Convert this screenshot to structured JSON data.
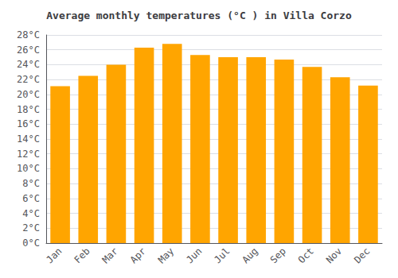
{
  "chart_data": {
    "type": "bar",
    "title": "Average monthly temperatures (°C ) in Villa Corzo",
    "categories": [
      "Jan",
      "Feb",
      "Mar",
      "Apr",
      "May",
      "Jun",
      "Jul",
      "Aug",
      "Sep",
      "Oct",
      "Nov",
      "Dec"
    ],
    "values": [
      21.1,
      22.5,
      24.0,
      26.3,
      26.8,
      25.3,
      25.0,
      25.0,
      24.7,
      23.7,
      22.3,
      21.2
    ],
    "color": "#FFA500",
    "ylim": [
      0,
      28
    ],
    "yticks": [
      {
        "value": 0,
        "label": "0°C"
      },
      {
        "value": 2,
        "label": "2°C"
      },
      {
        "value": 4,
        "label": "4°C"
      },
      {
        "value": 6,
        "label": "6°C"
      },
      {
        "value": 8,
        "label": "8°C"
      },
      {
        "value": 10,
        "label": "10°C"
      },
      {
        "value": 12,
        "label": "12°C"
      },
      {
        "value": 14,
        "label": "14°C"
      },
      {
        "value": 16,
        "label": "16°C"
      },
      {
        "value": 18,
        "label": "18°C"
      },
      {
        "value": 20,
        "label": "20°C"
      },
      {
        "value": 22,
        "label": "22°C"
      },
      {
        "value": 24,
        "label": "24°C"
      },
      {
        "value": 26,
        "label": "26°C"
      },
      {
        "value": 28,
        "label": "28°C"
      }
    ],
    "grid": true
  }
}
